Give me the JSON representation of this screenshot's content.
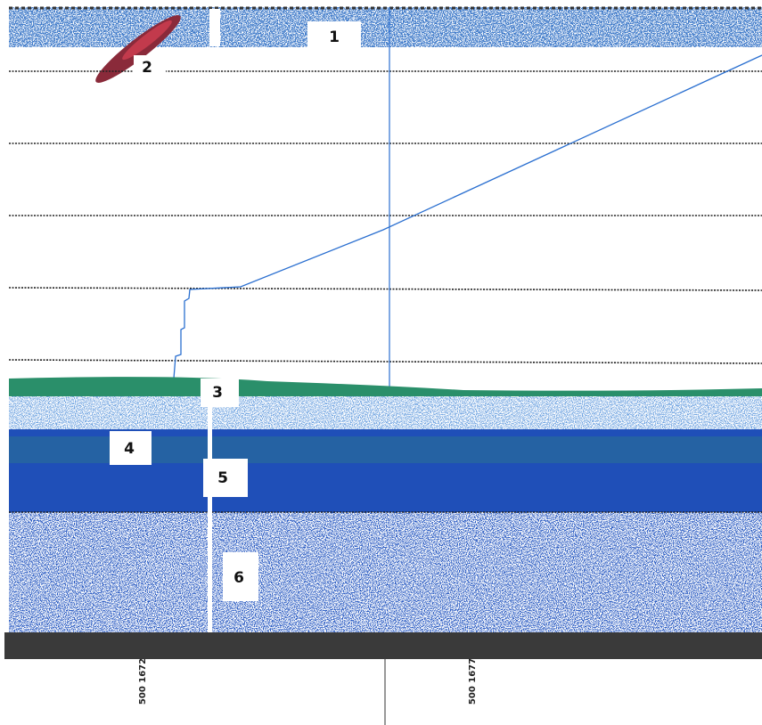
{
  "labels": [
    "1",
    "2",
    "3",
    "4",
    "5",
    "6"
  ],
  "annotations": [
    "500 1672",
    "500 1677"
  ]
}
